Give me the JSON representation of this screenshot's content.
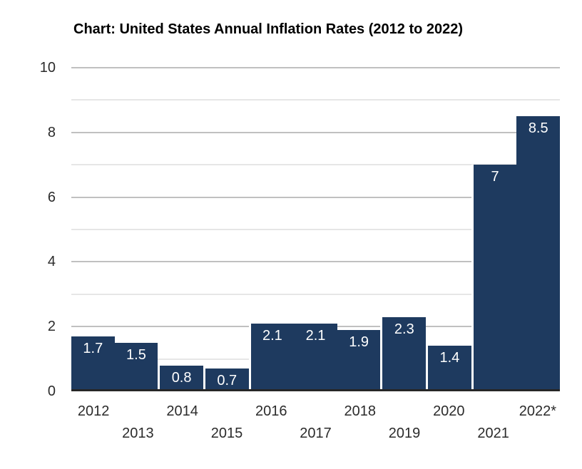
{
  "title": "Chart: United States Annual Inflation Rates (2012 to 2022)",
  "chart_data": {
    "type": "bar",
    "title": "Chart: United States Annual Inflation Rates (2012 to 2022)",
    "categories": [
      "2012",
      "2013",
      "2014",
      "2015",
      "2016",
      "2017",
      "2018",
      "2019",
      "2020",
      "2021",
      "2022*"
    ],
    "values": [
      1.7,
      1.5,
      0.8,
      0.7,
      2.1,
      2.1,
      1.9,
      2.3,
      1.4,
      7,
      8.5
    ],
    "value_labels": [
      "1.7",
      "1.5",
      "0.8",
      "0.7",
      "2.1",
      "2.1",
      "1.9",
      "2.3",
      "1.4",
      "7",
      "8.5"
    ],
    "xlabel": "",
    "ylabel": "",
    "ylim": [
      0,
      10
    ],
    "y_ticks": [
      0,
      2,
      4,
      6,
      8,
      10
    ],
    "x_tick_rows": {
      "row1": [
        "2012",
        "2014",
        "2016",
        "2018",
        "2020",
        "2022*"
      ],
      "row2": [
        "2013",
        "2015",
        "2017",
        "2019",
        "2021"
      ]
    },
    "grid": "horizontal lines every 1 unit; darker major lines at even values, lighter minor lines at odd values",
    "legend": "none",
    "bar_gap_before": [
      "2014",
      "2015",
      "2016",
      "2019",
      "2020",
      "2021"
    ],
    "colors": {
      "bar": "#1e3a5f",
      "value_label": "#ffffff",
      "axis_line": "#262626",
      "tick_label": "#2b2b2b",
      "title": "#000000",
      "grid_major": "#c0c0c0",
      "grid_minor": "#e6e6e6",
      "background": "#ffffff"
    }
  }
}
